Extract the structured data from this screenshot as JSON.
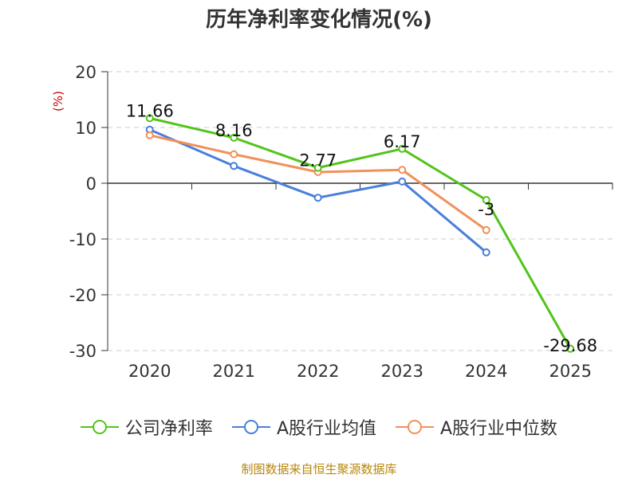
{
  "chart_data": {
    "type": "line",
    "title": "历年净利率变化情况(%)",
    "ylabel": "(%)",
    "xlabel": "",
    "categories": [
      "2020",
      "2021",
      "2022",
      "2023",
      "2024",
      "2025"
    ],
    "ylim": [
      -30,
      20
    ],
    "yticks": [
      20,
      10,
      0,
      -10,
      -20,
      -30
    ],
    "grid": true,
    "legend_position": "bottom",
    "series": [
      {
        "name": "公司净利率",
        "color": "#52c41a",
        "values": [
          11.66,
          8.16,
          2.77,
          6.17,
          -3,
          -29.68
        ],
        "labels": [
          "11.66",
          "8.16",
          "2.77",
          "6.17",
          "-3",
          "-29.68"
        ]
      },
      {
        "name": "A股行业均值",
        "color": "#4a7fd9",
        "values": [
          9.6,
          3.1,
          -2.6,
          0.3,
          -12.4,
          null
        ]
      },
      {
        "name": "A股行业中位数",
        "color": "#f0915a",
        "values": [
          8.6,
          5.2,
          2.0,
          2.4,
          -8.4,
          null
        ]
      }
    ]
  },
  "source": "制图数据来自恒生聚源数据库"
}
